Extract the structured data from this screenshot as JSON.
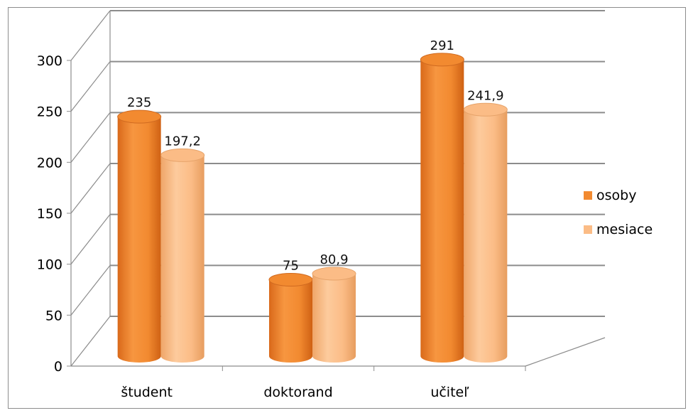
{
  "chart_data": {
    "type": "bar",
    "categories": [
      "študent",
      "doktorand",
      "učiteľ"
    ],
    "series": [
      {
        "name": "osoby",
        "values": [
          235,
          75,
          291
        ],
        "labels": [
          "235",
          "75",
          "291"
        ]
      },
      {
        "name": "mesiace",
        "values": [
          197.2,
          80.9,
          241.9
        ],
        "labels": [
          "197,2",
          "80,9",
          "241,9"
        ]
      }
    ],
    "ylim": [
      0,
      300
    ],
    "yticks": [
      0,
      50,
      100,
      150,
      200,
      250,
      300
    ],
    "grid": true,
    "legend_position": "right",
    "colors": {
      "osoby": "#f28a30",
      "mesiace": "#fbbc86"
    },
    "style": "3d-cylinder"
  }
}
